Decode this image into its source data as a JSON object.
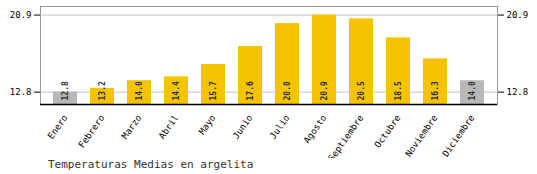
{
  "chart_data": {
    "type": "bar",
    "title": "Temperaturas Medias en argelita",
    "categories": [
      "Enero",
      "Febrero",
      "Marzo",
      "Abril",
      "Mayo",
      "Junio",
      "Julio",
      "Agosto",
      "Septiembre",
      "Octubre",
      "Noviembre",
      "Diciembre"
    ],
    "values": [
      12.8,
      13.2,
      14.0,
      14.4,
      15.7,
      17.6,
      20.0,
      20.9,
      20.5,
      18.5,
      16.3,
      14.0
    ],
    "value_labels": [
      "12.8",
      "13.2",
      "14.0",
      "14.4",
      "15.7",
      "17.6",
      "20.0",
      "20.9",
      "20.5",
      "18.5",
      "16.3",
      "14.0"
    ],
    "colors": [
      "#B8B8B8",
      "#F5C400",
      "#F5C400",
      "#F5C400",
      "#F5C400",
      "#F5C400",
      "#F5C400",
      "#F5C400",
      "#F5C400",
      "#F5C400",
      "#F5C400",
      "#B8B8B8"
    ],
    "ylim": [
      11.5,
      21.8
    ],
    "yticks": [
      12.8,
      20.9
    ],
    "grid": true,
    "data_labels": true
  }
}
